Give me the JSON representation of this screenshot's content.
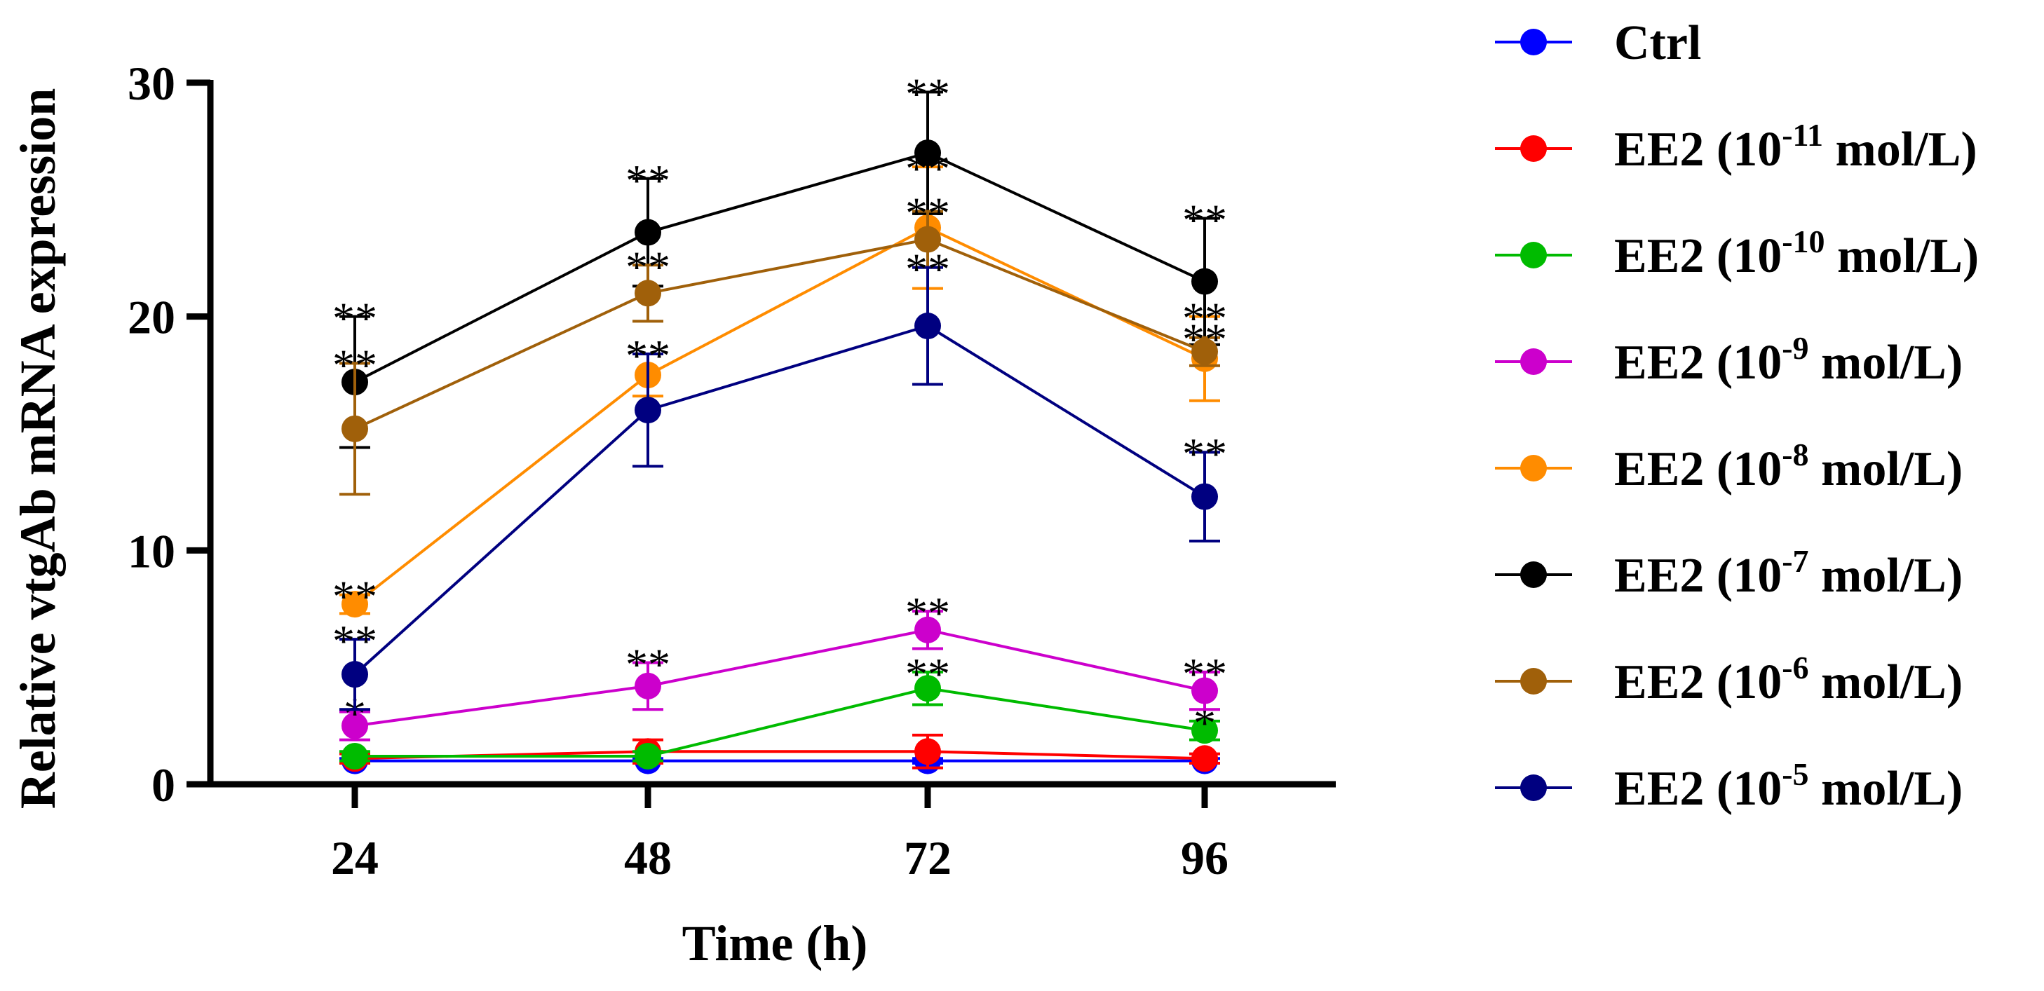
{
  "chart_data": {
    "type": "line",
    "title": "",
    "xlabel": "Time (h)",
    "ylabel": "Relative vtgAb  mRNA expression",
    "x": [
      24,
      48,
      72,
      96
    ],
    "x_tick_labels": [
      "24",
      "48",
      "72",
      "96"
    ],
    "ylim": [
      0,
      30
    ],
    "y_ticks": [
      0,
      10,
      20,
      30
    ],
    "y_tick_labels": [
      "0",
      "10",
      "20",
      "30"
    ],
    "grid": false,
    "legend_position": "right",
    "series": [
      {
        "name": "Ctrl",
        "legend_prefix": "Ctrl",
        "legend_exp": "",
        "legend_suffix": "",
        "color": "#0000ff",
        "values": [
          1.0,
          1.0,
          1.0,
          1.0
        ],
        "errors": [
          0.1,
          0.1,
          0.1,
          0.1
        ],
        "sig": [
          "",
          "",
          "",
          ""
        ]
      },
      {
        "name": "EE2 (10-11 mol/L)",
        "legend_prefix": "EE2 (10",
        "legend_exp": "-11",
        "legend_suffix": " mol/L)",
        "color": "#ff0000",
        "values": [
          1.1,
          1.4,
          1.4,
          1.1
        ],
        "errors": [
          0.2,
          0.5,
          0.7,
          0.2
        ],
        "sig": [
          "",
          "",
          "",
          ""
        ]
      },
      {
        "name": "EE2 (10-10 mol/L)",
        "legend_prefix": "EE2 (10",
        "legend_exp": "-10",
        "legend_suffix": " mol/L)",
        "color": "#00bb00",
        "values": [
          1.2,
          1.2,
          4.1,
          2.3
        ],
        "errors": [
          0.2,
          0.2,
          0.7,
          0.4
        ],
        "sig": [
          "",
          "",
          "**",
          "*"
        ]
      },
      {
        "name": "EE2 (10-9 mol/L)",
        "legend_prefix": "EE2 (10",
        "legend_exp": "-9",
        "legend_suffix": " mol/L)",
        "color": "#cc00cc",
        "values": [
          2.5,
          4.2,
          6.6,
          4.0
        ],
        "errors": [
          0.6,
          1.0,
          0.8,
          0.8
        ],
        "sig": [
          "*",
          "**",
          "**",
          "**"
        ]
      },
      {
        "name": "EE2 (10-8 mol/L)",
        "legend_prefix": "EE2 (10",
        "legend_exp": "-8",
        "legend_suffix": " mol/L)",
        "color": "#ff8c00",
        "values": [
          7.7,
          17.5,
          23.8,
          18.2
        ],
        "errors": [
          0.4,
          0.9,
          2.6,
          1.8
        ],
        "sig": [
          "**",
          "**",
          "**",
          "**"
        ]
      },
      {
        "name": "EE2 (10-7 mol/L)",
        "legend_prefix": "EE2 (10",
        "legend_exp": "-7",
        "legend_suffix": " mol/L)",
        "color": "#000000",
        "values": [
          17.2,
          23.6,
          27.0,
          21.5
        ],
        "errors": [
          2.8,
          2.3,
          2.6,
          2.7
        ],
        "sig": [
          "**",
          "**",
          "**",
          "**"
        ]
      },
      {
        "name": "EE2 (10-6 mol/L)",
        "legend_prefix": "EE2 (10",
        "legend_exp": "-6",
        "legend_suffix": " mol/L)",
        "color": "#a0600a",
        "values": [
          15.2,
          21.0,
          23.3,
          18.5
        ],
        "errors": [
          2.8,
          1.2,
          1.2,
          0.6
        ],
        "sig": [
          "**",
          "**",
          "**",
          "**"
        ]
      },
      {
        "name": "EE2 (10-5 mol/L)",
        "legend_prefix": "EE2 (10",
        "legend_exp": "-5",
        "legend_suffix": " mol/L)",
        "color": "#000080",
        "values": [
          4.7,
          16.0,
          19.6,
          12.3
        ],
        "errors": [
          1.5,
          2.4,
          2.5,
          1.9
        ],
        "sig": [
          "**",
          "**",
          "**",
          "**"
        ]
      }
    ]
  }
}
